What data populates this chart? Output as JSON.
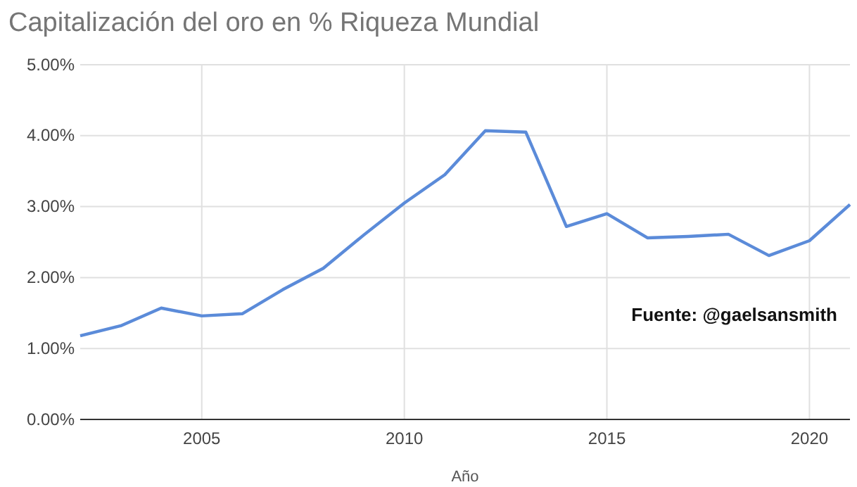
{
  "chart_data": {
    "type": "line",
    "title": "Capitalización del oro en % Riqueza Mundial",
    "xlabel": "Año",
    "x": [
      2002,
      2003,
      2004,
      2005,
      2006,
      2007,
      2008,
      2009,
      2010,
      2011,
      2012,
      2013,
      2014,
      2015,
      2016,
      2017,
      2018,
      2019,
      2020,
      2021
    ],
    "series": [
      {
        "color": "#5b8bd9",
        "values": [
          1.18,
          1.32,
          1.57,
          1.46,
          1.49,
          1.83,
          2.13,
          2.6,
          3.05,
          3.45,
          4.07,
          4.05,
          2.72,
          2.9,
          2.56,
          2.58,
          2.61,
          2.31,
          2.52,
          3.03
        ]
      }
    ],
    "xlim": [
      2002,
      2021
    ],
    "xticks": [
      2005,
      2010,
      2015,
      2020
    ],
    "ylim": [
      0,
      5
    ],
    "yticks": [
      {
        "value": 0,
        "label": "0.00%"
      },
      {
        "value": 1,
        "label": "1.00%"
      },
      {
        "value": 2,
        "label": "2.00%"
      },
      {
        "value": 3,
        "label": "3.00%"
      },
      {
        "value": 4,
        "label": "4.00%"
      },
      {
        "value": 5,
        "label": "5.00%"
      }
    ],
    "grid": true,
    "marker": "none",
    "line_style": "solid",
    "annotations": [
      "Fuente: @gaelsansmith"
    ]
  }
}
